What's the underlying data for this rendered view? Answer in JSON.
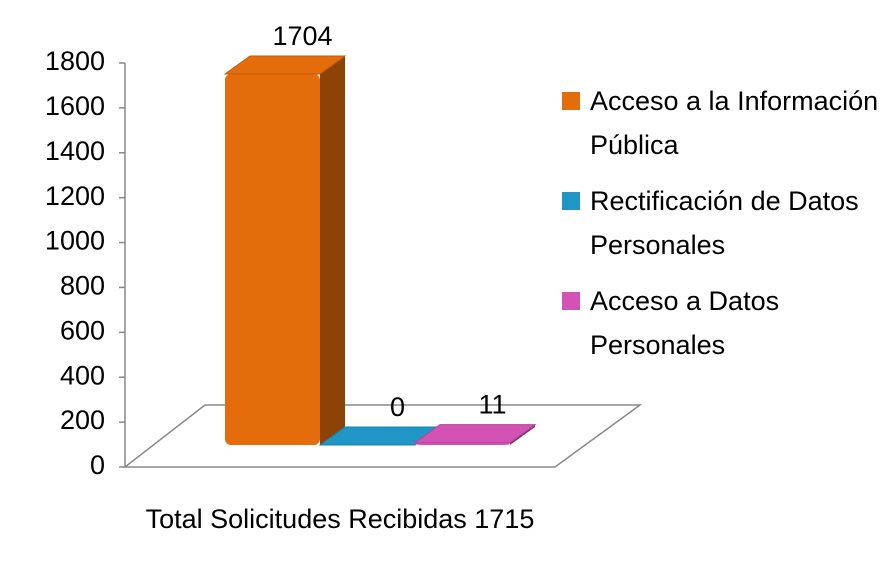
{
  "chart_data": {
    "type": "bar3d",
    "categories": [
      "Total Solicitudes Recibidas 1715"
    ],
    "series": [
      {
        "name": "Acceso a la Información Pública",
        "color": "#e46c0a",
        "values": [
          1704
        ]
      },
      {
        "name": "Rectificación de Datos Personales",
        "color": "#1f96c6",
        "values": [
          0
        ]
      },
      {
        "name": "Acceso a Datos Personales",
        "color": "#d452b4",
        "values": [
          11
        ]
      }
    ],
    "ylim": [
      0,
      1800
    ],
    "yticks": [
      0,
      200,
      400,
      600,
      800,
      1000,
      1200,
      1400,
      1600,
      1800
    ],
    "grid": false,
    "legend": "right"
  }
}
